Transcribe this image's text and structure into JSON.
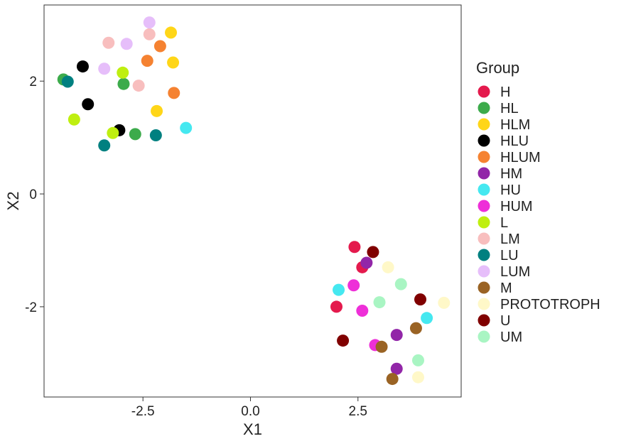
{
  "chart_data": {
    "type": "scatter",
    "title": "",
    "xlabel": "X1",
    "ylabel": "X2",
    "xlim": [
      -4.8,
      4.9
    ],
    "ylim": [
      -3.6,
      3.35
    ],
    "xticks": [
      -2.5,
      0.0,
      2.5
    ],
    "xtick_labels": [
      "-2.5",
      "0.0",
      "2.5"
    ],
    "yticks": [
      -2,
      0,
      2
    ],
    "ytick_labels": [
      "-2",
      "0",
      "2"
    ],
    "grid": false,
    "legend_title": "Group",
    "legend_position": "right",
    "series": [
      {
        "name": "H",
        "color": "#E41A4D",
        "points": [
          [
            2.42,
            -0.94
          ],
          [
            2.6,
            -1.3
          ],
          [
            2.0,
            -2.0
          ]
        ]
      },
      {
        "name": "HL",
        "color": "#3CAB4B",
        "points": [
          [
            -4.35,
            2.03
          ],
          [
            -2.95,
            1.95
          ],
          [
            -2.68,
            1.06
          ]
        ]
      },
      {
        "name": "HLM",
        "color": "#FFD618",
        "points": [
          [
            -1.85,
            2.86
          ],
          [
            -1.8,
            2.33
          ],
          [
            -2.18,
            1.47
          ]
        ]
      },
      {
        "name": "HLU",
        "color": "#000000",
        "points": [
          [
            -3.9,
            2.26
          ],
          [
            -3.78,
            1.59
          ],
          [
            -3.05,
            1.13
          ]
        ]
      },
      {
        "name": "HLUM",
        "color": "#F58231",
        "points": [
          [
            -2.1,
            2.62
          ],
          [
            -2.4,
            2.36
          ],
          [
            -1.78,
            1.79
          ]
        ]
      },
      {
        "name": "HM",
        "color": "#9226A8",
        "points": [
          [
            2.7,
            -1.22
          ],
          [
            3.4,
            -2.5
          ],
          [
            3.4,
            -3.1
          ]
        ]
      },
      {
        "name": "HU",
        "color": "#45E8F0",
        "points": [
          [
            -1.5,
            1.17
          ],
          [
            2.05,
            -1.7
          ],
          [
            4.1,
            -2.2
          ]
        ]
      },
      {
        "name": "HUM",
        "color": "#EE2FD8",
        "points": [
          [
            2.4,
            -1.62
          ],
          [
            2.6,
            -2.07
          ],
          [
            2.9,
            -2.68
          ]
        ]
      },
      {
        "name": "L",
        "color": "#BFEF10",
        "points": [
          [
            -2.97,
            2.15
          ],
          [
            -4.1,
            1.32
          ],
          [
            -3.2,
            1.08
          ]
        ]
      },
      {
        "name": "LM",
        "color": "#F8BEBE",
        "points": [
          [
            -3.3,
            2.68
          ],
          [
            -2.35,
            2.83
          ],
          [
            -2.6,
            1.92
          ]
        ]
      },
      {
        "name": "LU",
        "color": "#008080",
        "points": [
          [
            -4.25,
            1.99
          ],
          [
            -3.4,
            0.86
          ],
          [
            -2.2,
            1.04
          ]
        ]
      },
      {
        "name": "LUM",
        "color": "#E6BEFA",
        "points": [
          [
            -2.35,
            3.04
          ],
          [
            -2.88,
            2.66
          ],
          [
            -3.4,
            2.22
          ]
        ]
      },
      {
        "name": "M",
        "color": "#9A6324",
        "points": [
          [
            3.05,
            -2.71
          ],
          [
            3.85,
            -2.38
          ],
          [
            3.3,
            -3.28
          ]
        ]
      },
      {
        "name": "PROTOTROPH",
        "color": "#FFF8C8",
        "points": [
          [
            3.2,
            -1.3
          ],
          [
            4.5,
            -1.93
          ],
          [
            3.9,
            -3.25
          ]
        ]
      },
      {
        "name": "U",
        "color": "#800000",
        "points": [
          [
            2.85,
            -1.03
          ],
          [
            3.95,
            -1.87
          ],
          [
            2.15,
            -2.6
          ]
        ]
      },
      {
        "name": "UM",
        "color": "#A9F5C3",
        "points": [
          [
            3.5,
            -1.6
          ],
          [
            3.0,
            -1.92
          ],
          [
            3.9,
            -2.95
          ]
        ]
      }
    ]
  }
}
